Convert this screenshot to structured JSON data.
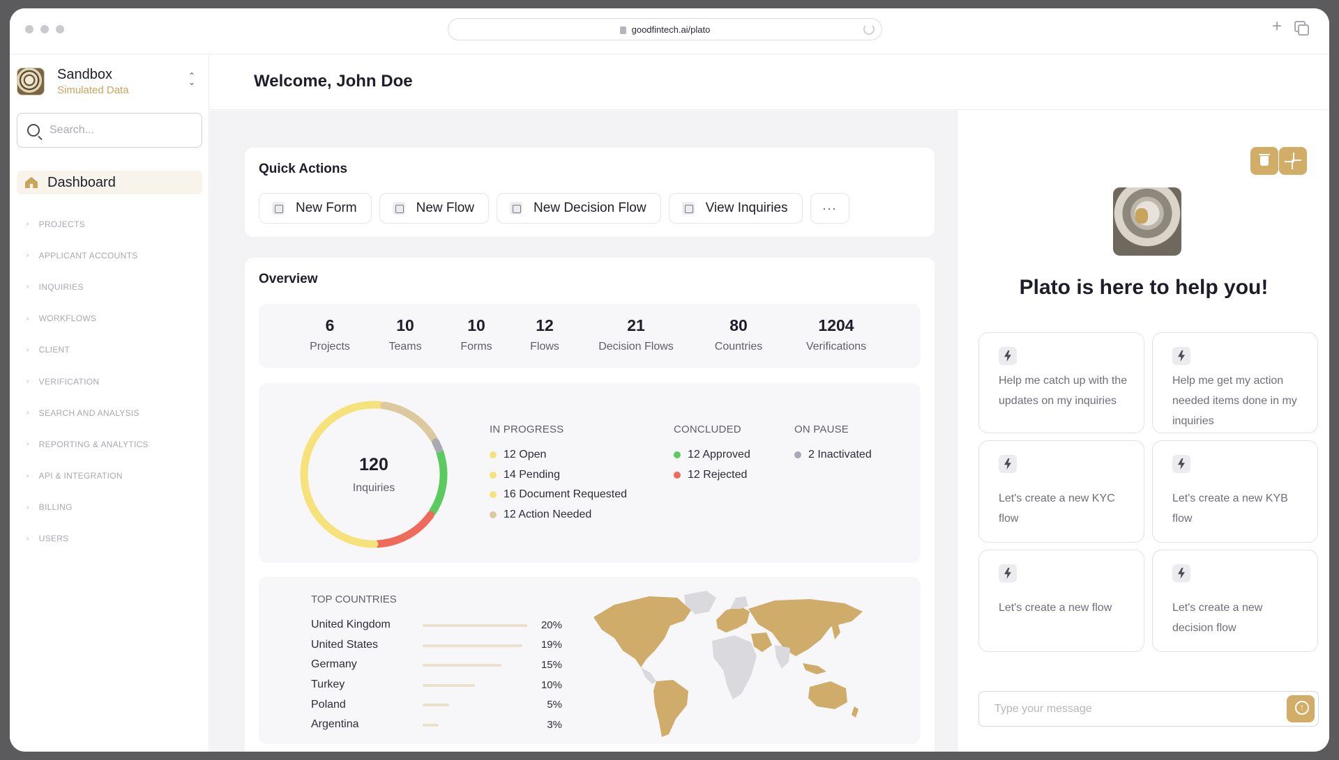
{
  "browser": {
    "url": "goodfintech.ai/plato"
  },
  "workspace": {
    "name": "Sandbox",
    "subtitle": "Simulated Data"
  },
  "search": {
    "placeholder": "Search..."
  },
  "sidebar": {
    "active": "Dashboard",
    "items": [
      "PROJECTS",
      "APPLICANT ACCOUNTS",
      "INQUIRIES",
      "WORKFLOWS",
      "CLIENT",
      "VERIFICATION",
      "SEARCH AND ANALYSIS",
      "REPORTING & ANALYTICS",
      "API & INTEGRATION",
      "BILLING",
      "USERS"
    ]
  },
  "header": {
    "welcome": "Welcome, John Doe"
  },
  "quick_actions": {
    "title": "Quick Actions",
    "buttons": [
      "New Form",
      "New Flow",
      "New Decision Flow",
      "View Inquiries"
    ],
    "more": "···"
  },
  "overview": {
    "title": "Overview",
    "stats": [
      {
        "value": "6",
        "label": "Projects"
      },
      {
        "value": "10",
        "label": "Teams"
      },
      {
        "value": "10",
        "label": "Forms"
      },
      {
        "value": "12",
        "label": "Flows"
      },
      {
        "value": "21",
        "label": "Decision Flows"
      },
      {
        "value": "80",
        "label": "Countries"
      },
      {
        "value": "1204",
        "label": "Verifications"
      }
    ],
    "inquiries": {
      "total": "120",
      "label": "Inquiries",
      "in_progress": {
        "heading": "IN PROGRESS",
        "items": [
          {
            "text": "12 Open",
            "count": 12,
            "color": "#f6e27a"
          },
          {
            "text": "14 Pending",
            "count": 14,
            "color": "#f6e27a"
          },
          {
            "text": "16 Document Requested",
            "count": 16,
            "color": "#f6e27a"
          },
          {
            "text": "12 Action Needed",
            "count": 12,
            "color": "#dcc9a0"
          }
        ]
      },
      "concluded": {
        "heading": "CONCLUDED",
        "items": [
          {
            "text": "12 Approved",
            "count": 12,
            "color": "#5ccb5f"
          },
          {
            "text": "12 Rejected",
            "count": 12,
            "color": "#ef6a5a"
          }
        ]
      },
      "on_pause": {
        "heading": "ON PAUSE",
        "items": [
          {
            "text": "2 Inactivated",
            "count": 2,
            "color": "#a9a9b1"
          }
        ]
      }
    },
    "top_countries": {
      "heading": "TOP COUNTRIES",
      "rows": [
        {
          "name": "United Kingdom",
          "pct": "20%",
          "value": 20
        },
        {
          "name": "United States",
          "pct": "19%",
          "value": 19
        },
        {
          "name": "Germany",
          "pct": "15%",
          "value": 15
        },
        {
          "name": "Turkey",
          "pct": "10%",
          "value": 10
        },
        {
          "name": "Poland",
          "pct": "5%",
          "value": 5
        },
        {
          "name": "Argentina",
          "pct": "3%",
          "value": 3
        }
      ]
    }
  },
  "chat": {
    "title": "Plato is here to help you!",
    "suggestions": [
      "Help me catch up with the updates on my inquiries",
      "Help me get my action needed items done in my inquiries",
      "Let's create a new KYC flow",
      "Let's create a new KYB flow",
      "Let's create a new flow",
      "Let's create a new decision flow"
    ],
    "input_placeholder": "Type your message"
  },
  "colors": {
    "accent": "#d2ad68",
    "map_land": "#cfac6a",
    "map_other": "#d9d9de"
  }
}
